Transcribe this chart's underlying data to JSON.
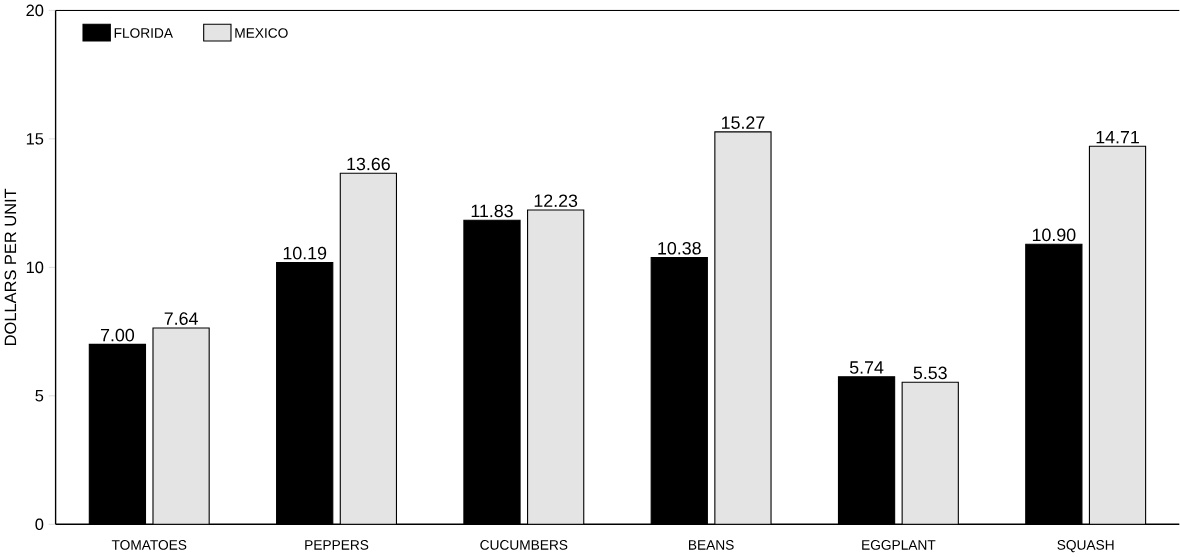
{
  "chart_data": {
    "type": "bar",
    "ylabel": "DOLLARS PER UNIT",
    "categories": [
      "TOMATOES",
      "PEPPERS",
      "CUCUMBERS",
      "BEANS",
      "EGGPLANT",
      "SQUASH"
    ],
    "series": [
      {
        "name": "FLORIDA",
        "color": "#000000",
        "values": [
          7.0,
          10.19,
          11.83,
          10.38,
          5.74,
          10.9
        ],
        "value_labels": [
          "7.00",
          "10.19",
          "11.83",
          "10.38",
          "5.74",
          "10.90"
        ]
      },
      {
        "name": "MEXICO",
        "color": "#e4e4e4",
        "values": [
          7.64,
          13.66,
          12.23,
          15.27,
          5.53,
          14.71
        ],
        "value_labels": [
          "7.64",
          "13.66",
          "12.23",
          "15.27",
          "5.53",
          "14.71"
        ]
      }
    ],
    "ylim": [
      0,
      20
    ],
    "yticks": [
      0,
      5,
      10,
      15,
      20
    ],
    "grid": false,
    "legend": "top left"
  }
}
